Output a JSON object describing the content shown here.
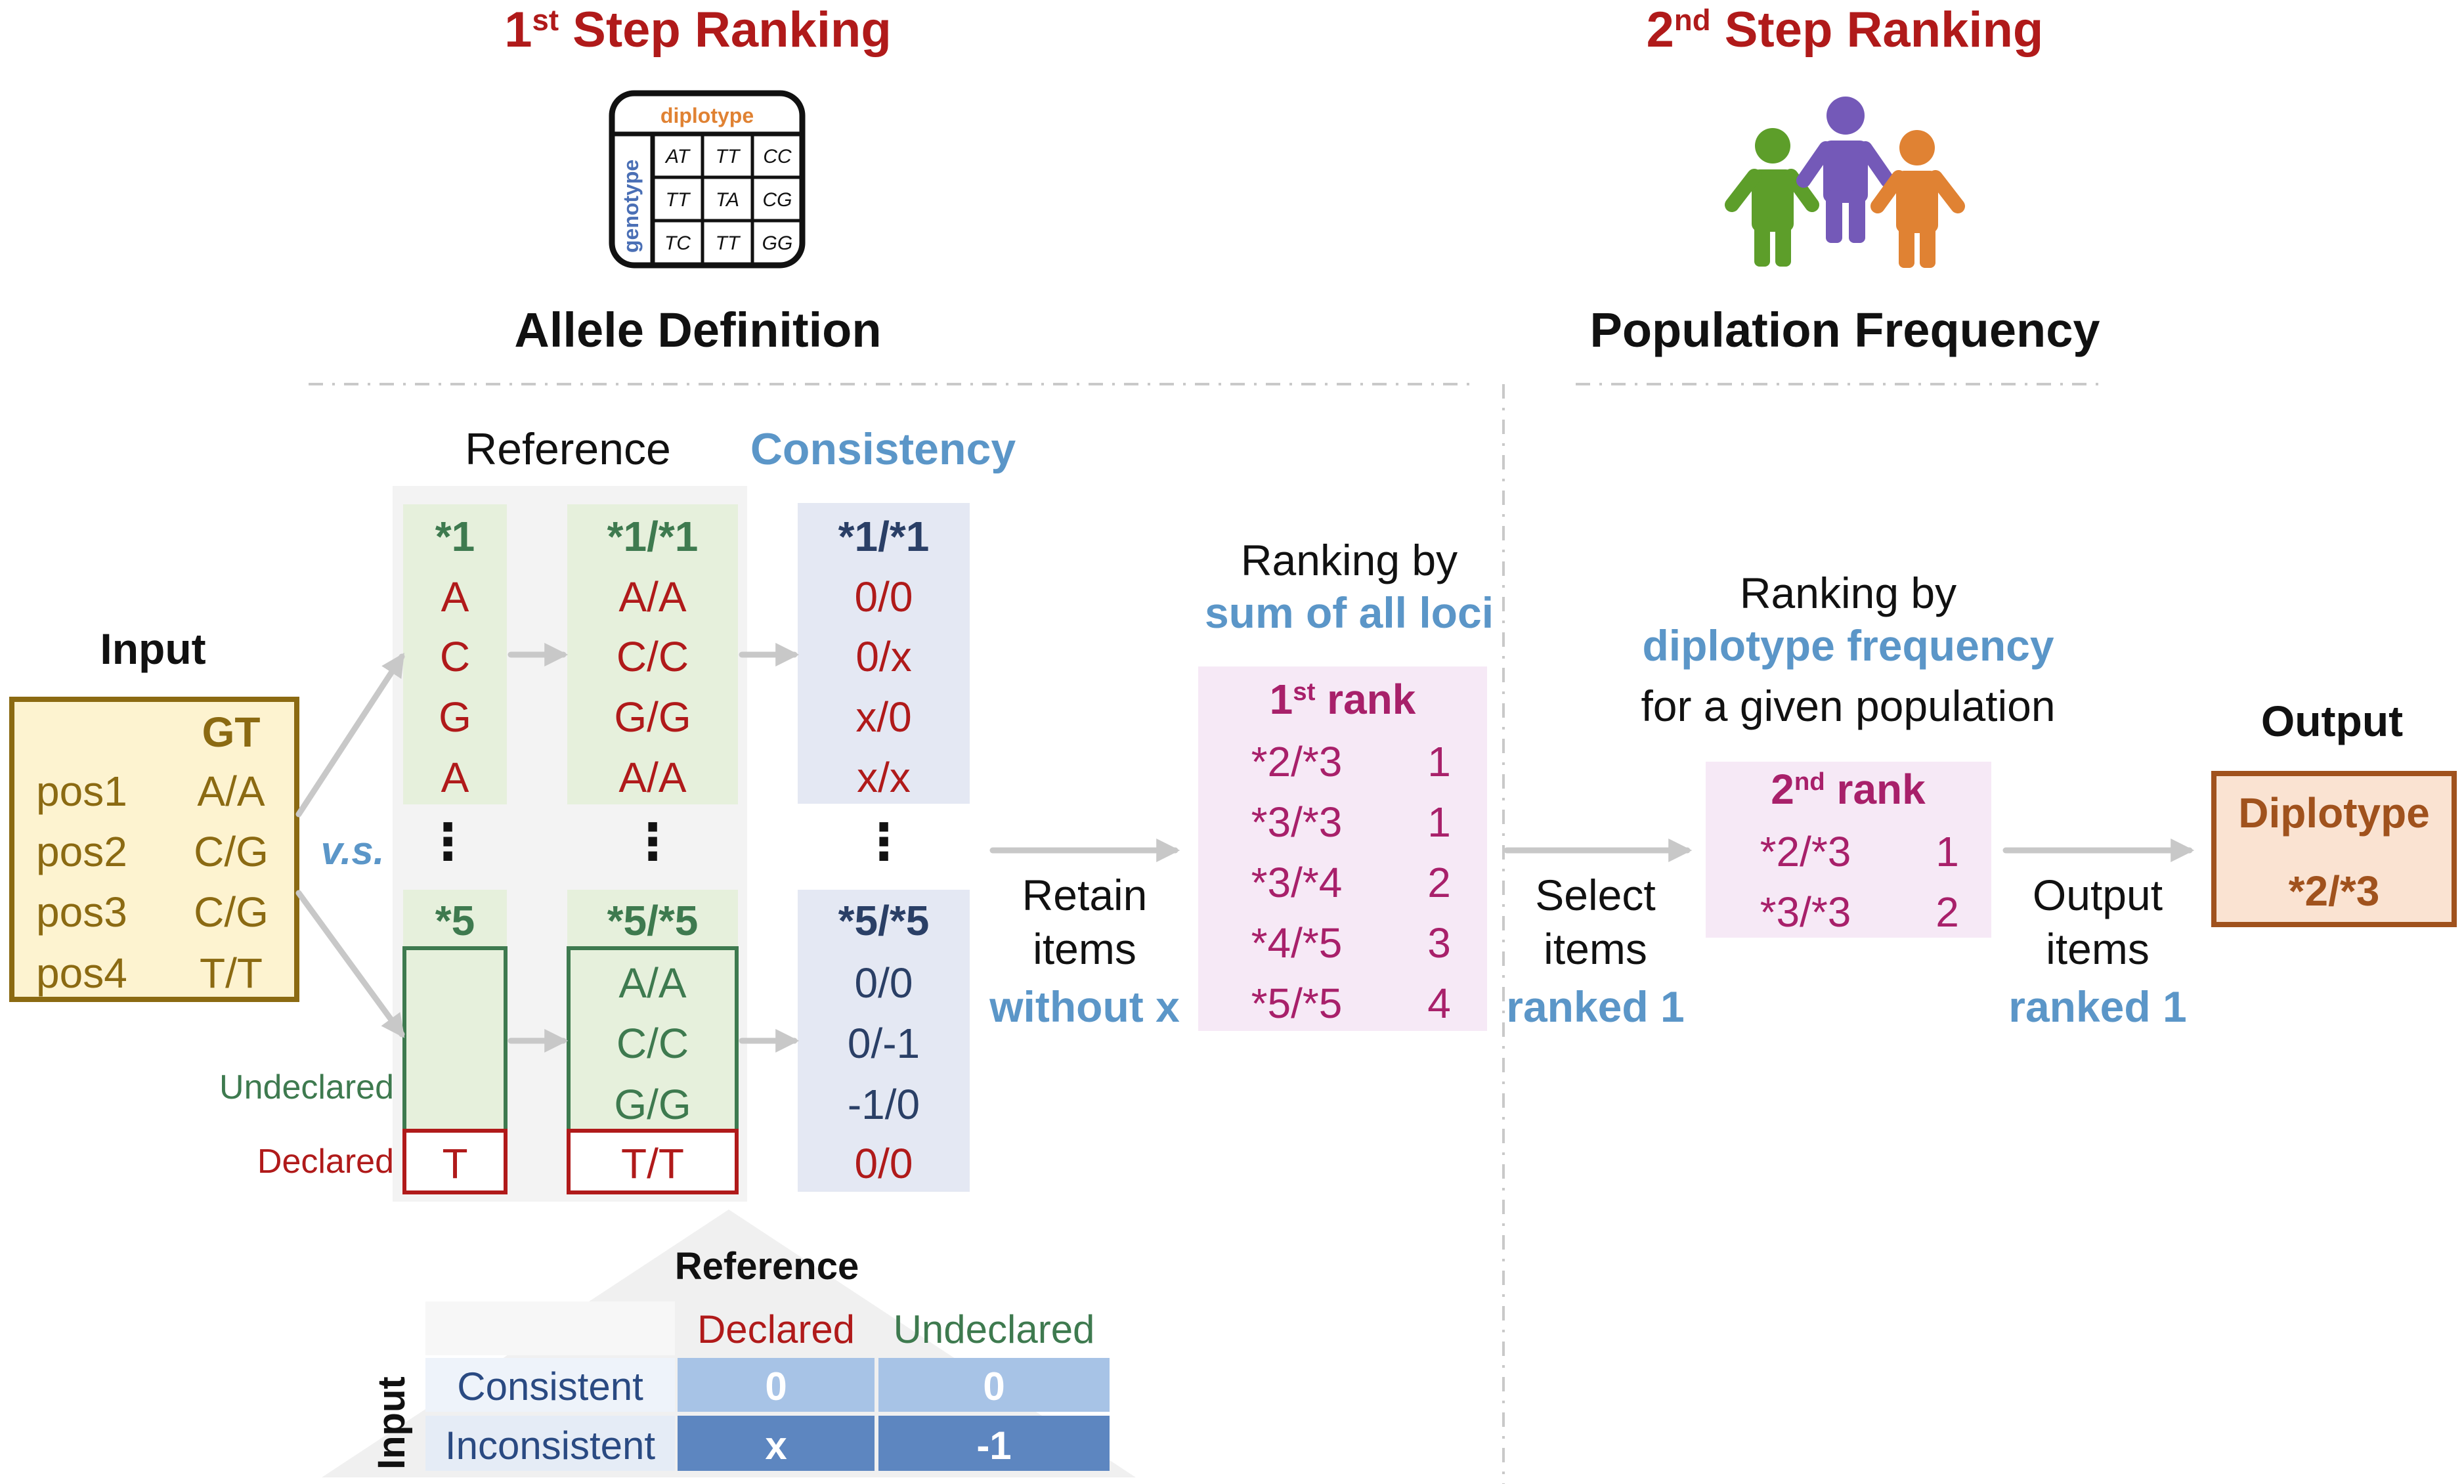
{
  "step1": {
    "title_num": "1",
    "title_sup": "st",
    "title_rest": " Step Ranking",
    "source": "Allele Definition",
    "icon_table": {
      "header": "diplotype",
      "side": "genotype",
      "cells": [
        "AT",
        "TT",
        "CC",
        "TT",
        "TA",
        "CG",
        "TC",
        "TT",
        "GG"
      ]
    }
  },
  "step2": {
    "title_num": "2",
    "title_sup": "nd",
    "title_rest": " Step Ranking",
    "source": "Population Frequency"
  },
  "input": {
    "label": "Input",
    "gt_header": "GT",
    "rows": [
      {
        "pos": "pos1",
        "gt": "A/A"
      },
      {
        "pos": "pos2",
        "gt": "C/G"
      },
      {
        "pos": "pos3",
        "gt": "C/G"
      },
      {
        "pos": "pos4",
        "gt": "T/T"
      }
    ]
  },
  "vs_label": "v.s.",
  "reference_label": "Reference",
  "consistency_label": "Consistency",
  "allele_col": {
    "top_header": "*1",
    "top_values": [
      "A",
      "C",
      "G",
      "A"
    ],
    "bottom_header": "*5",
    "bottom_value": "T",
    "undeclared_label": "Undeclared",
    "declared_label": "Declared"
  },
  "diplo_col": {
    "top_header": "*1/*1",
    "top_values": [
      "A/A",
      "C/C",
      "G/G",
      "A/A"
    ],
    "bottom_header": "*5/*5",
    "bottom_values": [
      "A/A",
      "C/C",
      "G/G"
    ],
    "bottom_declared": "T/T"
  },
  "cons_col": {
    "top_header": "*1/*1",
    "top_values": [
      "0/0",
      "0/x",
      "x/0",
      "x/x"
    ],
    "bottom_header": "*5/*5",
    "bottom_values": [
      "0/0",
      "0/-1",
      "-1/0",
      "0/0"
    ]
  },
  "ellipsis": "⋮",
  "retain": {
    "line1": "Retain",
    "line2": "items",
    "line3": "without x"
  },
  "rank1": {
    "title1": "Ranking by",
    "title2": "sum of all loci",
    "header_num": "1",
    "header_sup": "st",
    "header_rest": " rank",
    "rows": [
      {
        "diplotype": "*2/*3",
        "rank": "1"
      },
      {
        "diplotype": "*3/*3",
        "rank": "1"
      },
      {
        "diplotype": "*3/*4",
        "rank": "2"
      },
      {
        "diplotype": "*4/*5",
        "rank": "3"
      },
      {
        "diplotype": "*5/*5",
        "rank": "4"
      }
    ]
  },
  "select": {
    "line1": "Select",
    "line2": "items",
    "line3": "ranked 1"
  },
  "rank2": {
    "title1": "Ranking by",
    "title2": "diplotype frequency",
    "title3": "for a given population",
    "header_num": "2",
    "header_sup": "nd",
    "header_rest": " rank",
    "rows": [
      {
        "diplotype": "*2/*3",
        "rank": "1"
      },
      {
        "diplotype": "*3/*3",
        "rank": "2"
      }
    ]
  },
  "output_step": {
    "line1": "Output",
    "line2": "items",
    "line3": "ranked 1"
  },
  "output": {
    "label": "Output",
    "line1": "Diplotype",
    "line2": "*2/*3"
  },
  "legend": {
    "reference_label": "Reference",
    "input_label": "Input",
    "col_declared": "Declared",
    "col_undeclared": "Undeclared",
    "row_consistent": "Consistent",
    "row_inconsistent": "Inconsistent",
    "values": [
      [
        "0",
        "0"
      ],
      [
        "x",
        "-1"
      ]
    ]
  },
  "colors": {
    "dark_red": "#b01a1a",
    "green": "#3e7a4f",
    "navy": "#2a3f66",
    "blue": "#5b96c8",
    "magenta": "#a8206a",
    "olive": "#8b6a12",
    "brown": "#a0521d",
    "light_green_fill": "#e6f0dc",
    "light_blue_fill": "#e4e8f3",
    "pink_fill": "#f6e9f6",
    "input_fill": "#fdf3d0",
    "output_fill": "#fae3d2"
  }
}
